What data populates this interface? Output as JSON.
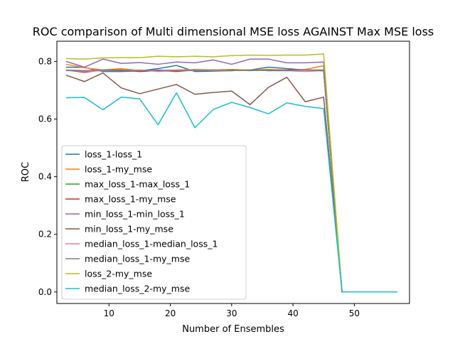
{
  "chart_data": {
    "type": "line",
    "title": "ROC comparison of Multi dimensional MSE loss AGAINST Max MSE loss",
    "xlabel": "Number of Ensembles",
    "ylabel": "ROC",
    "xlim": [
      1.5,
      59
    ],
    "ylim": [
      -0.04,
      0.87
    ],
    "xticks": [
      10,
      20,
      30,
      40,
      50
    ],
    "yticks": [
      0.0,
      0.2,
      0.4,
      0.6,
      0.8
    ],
    "ytick_labels": [
      "0.0",
      "0.2",
      "0.4",
      "0.6",
      "0.8"
    ],
    "grid": false,
    "legend_position": "lower-left",
    "x": [
      3,
      6,
      9,
      12,
      15,
      18,
      21,
      24,
      27,
      30,
      33,
      36,
      39,
      42,
      45,
      48,
      51,
      54,
      57
    ],
    "series": [
      {
        "name": "loss_1-loss_1",
        "color": "#1f77b4",
        "values": [
          0.78,
          0.779,
          0.765,
          0.765,
          0.767,
          0.775,
          0.786,
          0.765,
          0.766,
          0.768,
          0.77,
          0.78,
          0.775,
          0.77,
          0.767,
          0.0,
          0.0,
          0.0,
          0.0
        ]
      },
      {
        "name": "loss_1-my_mse",
        "color": "#ff7f0e",
        "values": [
          0.79,
          0.778,
          0.77,
          0.775,
          0.768,
          0.768,
          0.77,
          0.772,
          0.77,
          0.772,
          0.77,
          0.772,
          0.77,
          0.772,
          0.785,
          0.0,
          0.0,
          0.0,
          0.0
        ]
      },
      {
        "name": "max_loss_1-max_loss_1",
        "color": "#2ca02c",
        "values": [
          0.77,
          0.768,
          0.768,
          0.77,
          0.768,
          0.768,
          0.768,
          0.77,
          0.768,
          0.77,
          0.768,
          0.77,
          0.768,
          0.77,
          0.77,
          0.0,
          0.0,
          0.0,
          0.0
        ]
      },
      {
        "name": "max_loss_1-my_mse",
        "color": "#d62728",
        "values": [
          0.77,
          0.762,
          0.77,
          0.77,
          0.765,
          0.768,
          0.765,
          0.77,
          0.768,
          0.768,
          0.77,
          0.768,
          0.77,
          0.77,
          0.768,
          0.0,
          0.0,
          0.0,
          0.0
        ]
      },
      {
        "name": "min_loss_1-min_loss_1",
        "color": "#9467bd",
        "values": [
          0.8,
          0.78,
          0.808,
          0.793,
          0.796,
          0.79,
          0.798,
          0.795,
          0.805,
          0.79,
          0.808,
          0.808,
          0.795,
          0.795,
          0.798,
          0.0,
          0.0,
          0.0,
          0.0
        ]
      },
      {
        "name": "min_loss_1-my_mse",
        "color": "#8c564b",
        "values": [
          0.752,
          0.73,
          0.76,
          0.708,
          0.688,
          0.704,
          0.72,
          0.686,
          0.692,
          0.697,
          0.65,
          0.71,
          0.745,
          0.66,
          0.676,
          0.0,
          0.0,
          0.0,
          0.0
        ]
      },
      {
        "name": "median_loss_1-median_loss_1",
        "color": "#e377c2",
        "values": [
          0.77,
          0.765,
          0.768,
          0.768,
          0.77,
          0.765,
          0.768,
          0.77,
          0.768,
          0.768,
          0.77,
          0.768,
          0.768,
          0.765,
          0.768,
          0.0,
          0.0,
          0.0,
          0.0
        ]
      },
      {
        "name": "median_loss_1-my_mse",
        "color": "#7f7f7f",
        "values": [
          0.768,
          0.768,
          0.77,
          0.768,
          0.768,
          0.77,
          0.768,
          0.768,
          0.77,
          0.768,
          0.77,
          0.768,
          0.768,
          0.77,
          0.768,
          0.0,
          0.0,
          0.0,
          0.0
        ]
      },
      {
        "name": "loss_2-my_mse",
        "color": "#bcbd22",
        "values": [
          0.81,
          0.808,
          0.812,
          0.813,
          0.813,
          0.818,
          0.816,
          0.818,
          0.816,
          0.82,
          0.822,
          0.821,
          0.822,
          0.822,
          0.826,
          0.0,
          0.0,
          0.0,
          0.0
        ]
      },
      {
        "name": "median_loss_2-my_mse",
        "color": "#17becf",
        "values": [
          0.674,
          0.675,
          0.632,
          0.676,
          0.67,
          0.58,
          0.691,
          0.57,
          0.633,
          0.658,
          0.64,
          0.618,
          0.656,
          0.644,
          0.636,
          0.0,
          0.0,
          0.0,
          0.0
        ]
      }
    ]
  }
}
